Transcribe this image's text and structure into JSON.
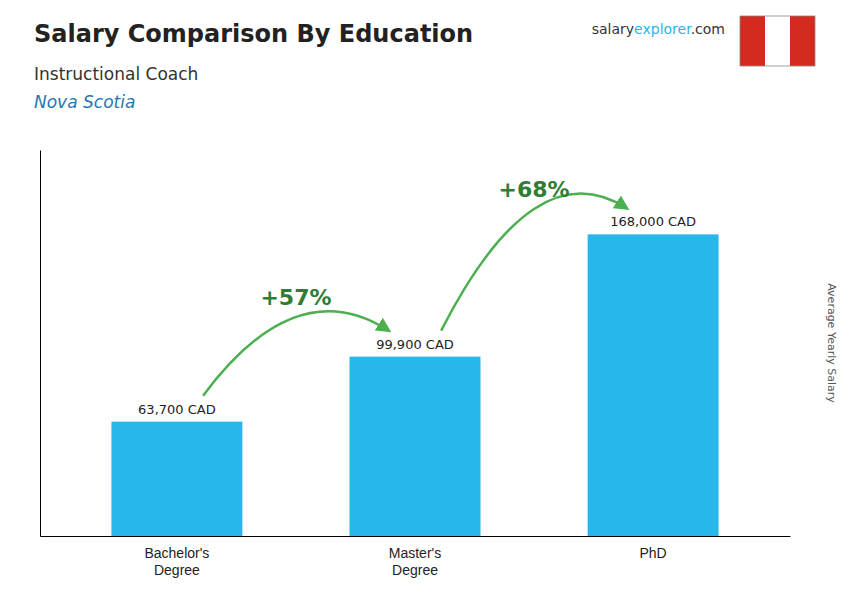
{
  "chart_data": {
    "type": "bar",
    "title": "Salary Comparison By Education",
    "subtitle": "Instructional Coach",
    "region": "Nova Scotia",
    "brand": [
      {
        "text": "salary",
        "color": "#333333"
      },
      {
        "text": "explorer",
        "color": "#29b6e8"
      },
      {
        "text": ".com",
        "color": "#333333"
      }
    ],
    "ylabel": "Average Yearly Salary",
    "categories": [
      "Bachelor's\nDegree",
      "Master's\nDegree",
      "PhD"
    ],
    "values": [
      63700,
      99900,
      168000
    ],
    "value_labels": [
      "63,700 CAD",
      "99,900 CAD",
      "168,000 CAD"
    ],
    "annotations": [
      "+57%",
      "+68%"
    ],
    "color": "#29b6e8",
    "ylim": [
      0,
      215000
    ],
    "data_labels": true,
    "tick_labels": "x",
    "grid": false
  }
}
